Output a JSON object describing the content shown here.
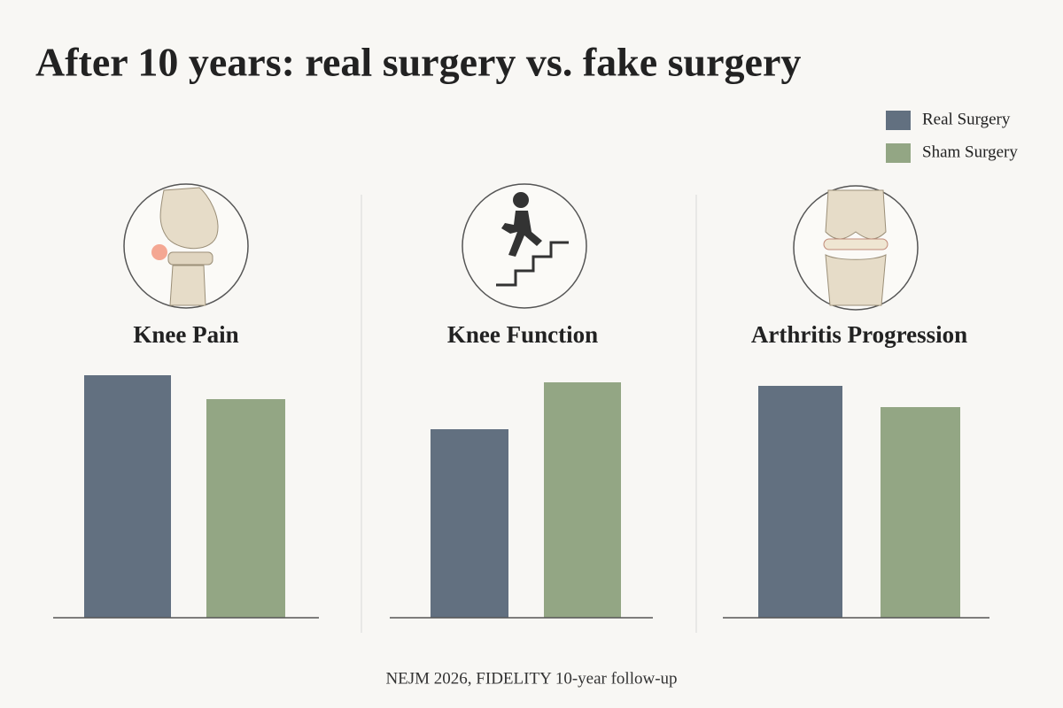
{
  "title": "After 10 years: real surgery vs. fake surgery",
  "series": [
    {
      "name": "Real Surgery",
      "color": "#627080"
    },
    {
      "name": "Sham Surgery",
      "color": "#93a684"
    }
  ],
  "source": "NEJM 2026, FIDELITY 10-year follow-up",
  "chart_data": [
    {
      "type": "bar",
      "title": "Knee Pain",
      "values": [
        274,
        247
      ],
      "ylim": [
        0,
        300
      ]
    },
    {
      "type": "bar",
      "title": "Knee Function",
      "values": [
        213,
        266
      ],
      "ylim": [
        0,
        300
      ]
    },
    {
      "type": "bar",
      "title": "Arthritis Progression",
      "values": [
        262,
        238
      ],
      "ylim": [
        0,
        300
      ]
    }
  ]
}
